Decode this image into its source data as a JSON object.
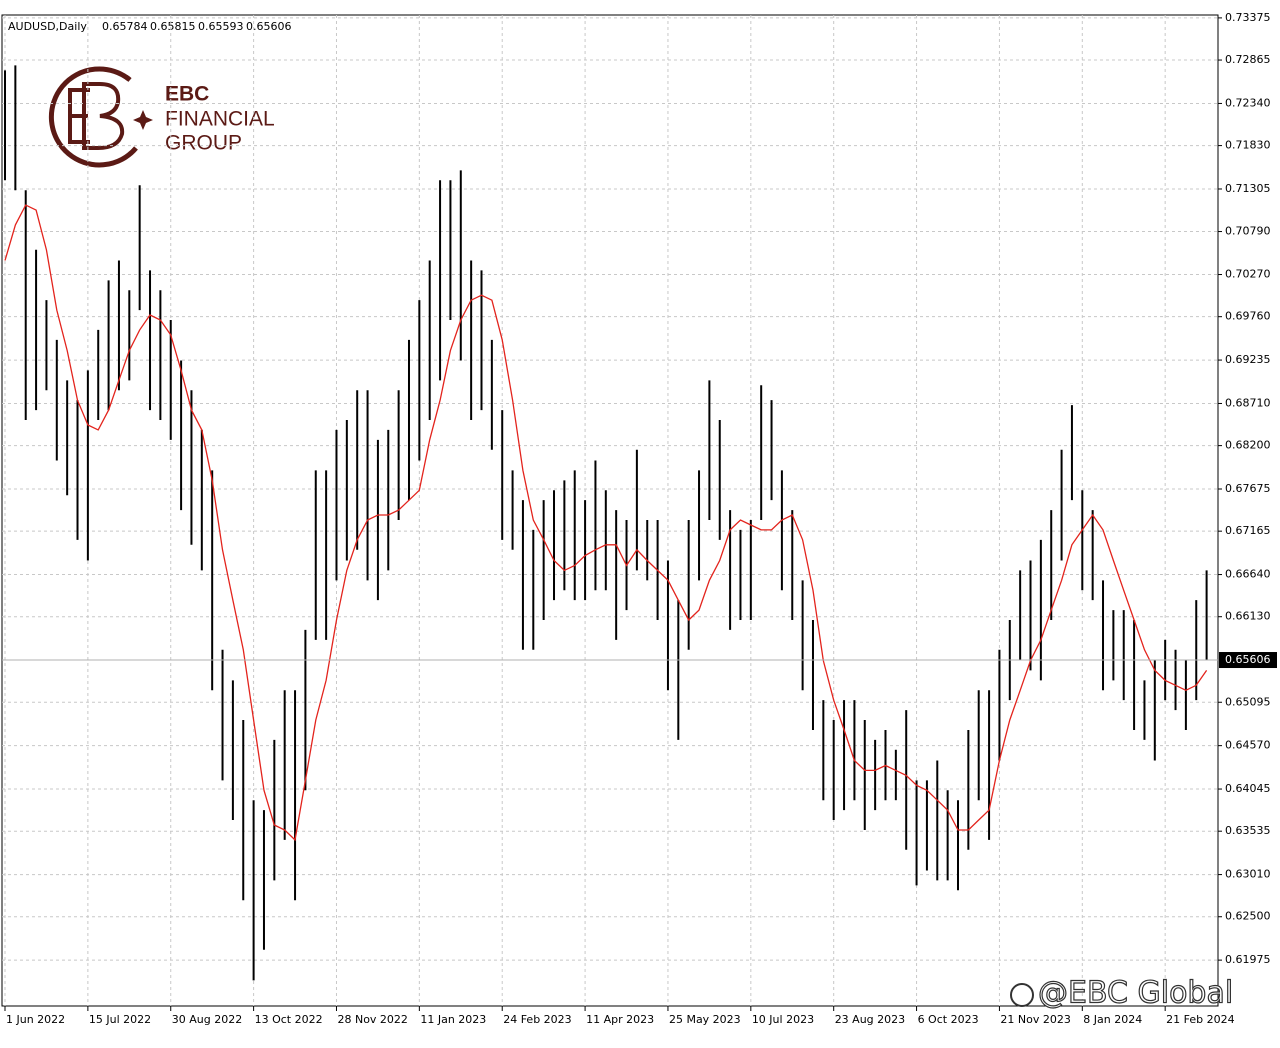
{
  "chart_data": {
    "type": "ohlc",
    "symbol": "AUDUSD,Daily",
    "quote": [
      0.65784,
      0.65815,
      0.65593,
      0.65606
    ],
    "bar_color": "#000000",
    "high": [
      0.7274,
      0.728,
      0.7129,
      0.7057,
      0.6996,
      0.6948,
      0.6899,
      0.6875,
      0.6911,
      0.696,
      0.702,
      0.7044,
      0.7008,
      0.7135,
      0.7032,
      0.7008,
      0.6972,
      0.6923,
      0.6887,
      0.6839,
      0.679,
      0.6573,
      0.6536,
      0.6488,
      0.6391,
      0.6379,
      0.6464,
      0.6524,
      0.6524,
      0.6597,
      0.679,
      0.679,
      0.6839,
      0.6851,
      0.6887,
      0.6887,
      0.6827,
      0.6839,
      0.6887,
      0.6948,
      0.6996,
      0.7044,
      0.7141,
      0.7141,
      0.7153,
      0.7044,
      0.7032,
      0.6948,
      0.6863,
      0.679,
      0.6754,
      0.6718,
      0.6754,
      0.6766,
      0.6778,
      0.679,
      0.6754,
      0.6802,
      0.6766,
      0.6742,
      0.673,
      0.6815,
      0.673,
      0.673,
      0.6681,
      0.6633,
      0.673,
      0.679,
      0.6899,
      0.6851,
      0.6742,
      0.6718,
      0.673,
      0.6893,
      0.6875,
      0.679,
      0.6742,
      0.6657,
      0.6609,
      0.6512,
      0.6488,
      0.6512,
      0.6512,
      0.6488,
      0.6464,
      0.6476,
      0.6452,
      0.65,
      0.6415,
      0.6415,
      0.6439,
      0.6403,
      0.6391,
      0.6476,
      0.6524,
      0.6524,
      0.6573,
      0.6609,
      0.6669,
      0.6681,
      0.6706,
      0.6742,
      0.6815,
      0.6869,
      0.6766,
      0.6742,
      0.6657,
      0.6621,
      0.6621,
      0.6609,
      0.6536,
      0.656,
      0.6585,
      0.6573,
      0.656,
      0.6633,
      0.6669
    ],
    "low": [
      0.7141,
      0.7129,
      0.6851,
      0.6863,
      0.6887,
      0.6802,
      0.676,
      0.6706,
      0.6681,
      0.6851,
      0.6863,
      0.6887,
      0.6899,
      0.6984,
      0.6863,
      0.6851,
      0.6827,
      0.6742,
      0.67,
      0.6669,
      0.6524,
      0.6415,
      0.6367,
      0.627,
      0.6173,
      0.621,
      0.6294,
      0.6343,
      0.627,
      0.6403,
      0.6585,
      0.6585,
      0.6657,
      0.6681,
      0.6694,
      0.6657,
      0.6633,
      0.6669,
      0.673,
      0.6754,
      0.6802,
      0.6851,
      0.6899,
      0.6972,
      0.6923,
      0.6851,
      0.6863,
      0.6815,
      0.6706,
      0.6694,
      0.6573,
      0.6573,
      0.6609,
      0.6633,
      0.6645,
      0.6633,
      0.6633,
      0.6645,
      0.6645,
      0.6585,
      0.6621,
      0.6669,
      0.6657,
      0.6609,
      0.6524,
      0.6464,
      0.6573,
      0.6657,
      0.673,
      0.6706,
      0.6597,
      0.6609,
      0.6609,
      0.673,
      0.6754,
      0.6645,
      0.6609,
      0.6524,
      0.6476,
      0.6391,
      0.6367,
      0.6379,
      0.6391,
      0.6355,
      0.6379,
      0.6391,
      0.6391,
      0.6331,
      0.6288,
      0.6306,
      0.6294,
      0.6294,
      0.6282,
      0.6331,
      0.6391,
      0.6343,
      0.6439,
      0.6512,
      0.656,
      0.6548,
      0.6536,
      0.6609,
      0.6681,
      0.6754,
      0.6645,
      0.6633,
      0.6524,
      0.6536,
      0.6512,
      0.6476,
      0.6464,
      0.6439,
      0.6512,
      0.65,
      0.6476,
      0.6512,
      0.656
    ],
    "ma": {
      "color": "#e3241d",
      "values": [
        0.7044,
        0.7087,
        0.7111,
        0.7105,
        0.7057,
        0.6984,
        0.6935,
        0.6875,
        0.6845,
        0.6839,
        0.6863,
        0.6899,
        0.6935,
        0.696,
        0.6978,
        0.6972,
        0.6954,
        0.6911,
        0.6863,
        0.6839,
        0.6778,
        0.6694,
        0.6633,
        0.6573,
        0.6488,
        0.6403,
        0.6361,
        0.6355,
        0.6343,
        0.6415,
        0.6488,
        0.6536,
        0.6609,
        0.6669,
        0.6706,
        0.673,
        0.6736,
        0.6736,
        0.6742,
        0.6754,
        0.6766,
        0.6827,
        0.6875,
        0.6935,
        0.6972,
        0.6996,
        0.7002,
        0.6996,
        0.6948,
        0.6875,
        0.679,
        0.673,
        0.6706,
        0.6681,
        0.6669,
        0.6675,
        0.6687,
        0.6694,
        0.67,
        0.67,
        0.6675,
        0.6694,
        0.6681,
        0.6669,
        0.6657,
        0.6633,
        0.6609,
        0.6621,
        0.6657,
        0.6681,
        0.6718,
        0.673,
        0.6724,
        0.6718,
        0.6718,
        0.673,
        0.6736,
        0.6706,
        0.6645,
        0.656,
        0.6512,
        0.6476,
        0.6439,
        0.6427,
        0.6427,
        0.6433,
        0.6427,
        0.6421,
        0.6409,
        0.6403,
        0.6391,
        0.6379,
        0.6355,
        0.6355,
        0.6367,
        0.6379,
        0.6439,
        0.6488,
        0.6524,
        0.656,
        0.6585,
        0.6621,
        0.6657,
        0.67,
        0.6718,
        0.6736,
        0.6718,
        0.6681,
        0.6645,
        0.6609,
        0.6573,
        0.6548,
        0.6536,
        0.653,
        0.6524,
        0.653,
        0.6548
      ]
    },
    "xlim": [
      -0.29,
      117.1
    ],
    "xticks": [
      {
        "value": 0,
        "label": "1 Jun 2022"
      },
      {
        "value": 8,
        "label": "15 Jul 2022"
      },
      {
        "value": 16,
        "label": "30 Aug 2022"
      },
      {
        "value": 24,
        "label": "13 Oct 2022"
      },
      {
        "value": 32,
        "label": "28 Nov 2022"
      },
      {
        "value": 40,
        "label": "11 Jan 2023"
      },
      {
        "value": 48,
        "label": "24 Feb 2023"
      },
      {
        "value": 56,
        "label": "11 Apr 2023"
      },
      {
        "value": 64,
        "label": "25 May 2023"
      },
      {
        "value": 72,
        "label": "10 Jul 2023"
      },
      {
        "value": 80,
        "label": "23 Aug 2023"
      },
      {
        "value": 88,
        "label": "6 Oct 2023"
      },
      {
        "value": 96,
        "label": "21 Nov 2023"
      },
      {
        "value": 104,
        "label": "8 Jan 2024"
      },
      {
        "value": 112,
        "label": "21 Feb 2024"
      }
    ],
    "ylim": [
      0.6142,
      0.7341
    ],
    "yticks": [
      {
        "value": 0.73375,
        "label": "0.73375"
      },
      {
        "value": 0.72865,
        "label": "0.72865"
      },
      {
        "value": 0.7234,
        "label": "0.72340"
      },
      {
        "value": 0.7183,
        "label": "0.71830"
      },
      {
        "value": 0.71305,
        "label": "0.71305"
      },
      {
        "value": 0.7079,
        "label": "0.70790"
      },
      {
        "value": 0.7027,
        "label": "0.70270"
      },
      {
        "value": 0.6976,
        "label": "0.69760"
      },
      {
        "value": 0.69235,
        "label": "0.69235"
      },
      {
        "value": 0.6871,
        "label": "0.68710"
      },
      {
        "value": 0.682,
        "label": "0.68200"
      },
      {
        "value": 0.67675,
        "label": "0.67675"
      },
      {
        "value": 0.67165,
        "label": "0.67165"
      },
      {
        "value": 0.6664,
        "label": "0.66640"
      },
      {
        "value": 0.6613,
        "label": "0.66130"
      },
      {
        "value": 0.65095,
        "label": "0.65095"
      },
      {
        "value": 0.6457,
        "label": "0.64570"
      },
      {
        "value": 0.64045,
        "label": "0.64045"
      },
      {
        "value": 0.63535,
        "label": "0.63535"
      },
      {
        "value": 0.6301,
        "label": "0.63010"
      },
      {
        "value": 0.625,
        "label": "0.62500"
      },
      {
        "value": 0.61975,
        "label": "0.61975"
      }
    ],
    "grid": true
  },
  "logo": {
    "line1": "EBC",
    "line2": "FINANCIAL",
    "line3": "GROUP"
  },
  "watermark": "@EBC Global"
}
